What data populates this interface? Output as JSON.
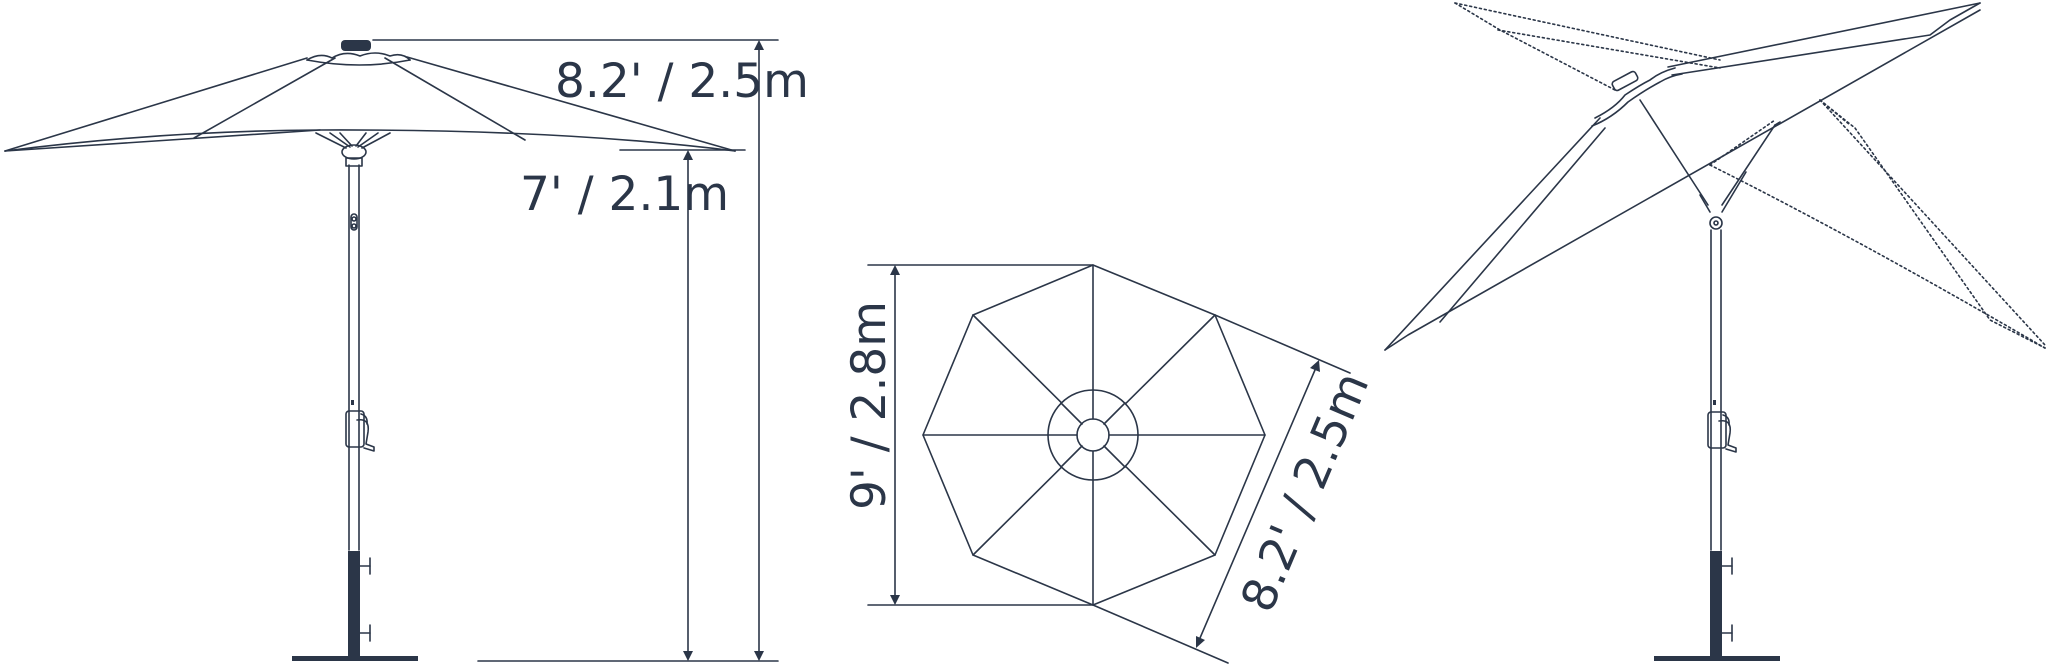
{
  "colors": {
    "ink": "#2b3648",
    "fill": "#2b3648",
    "background": "#ffffff"
  },
  "side_view": {
    "overall_height_label": "8.2' / 2.5m",
    "clearance_label": "7' / 2.1m"
  },
  "top_view": {
    "width_label": "9' / 2.8m",
    "side_label": "8.2' / 2.5m"
  },
  "tilted_view": {}
}
